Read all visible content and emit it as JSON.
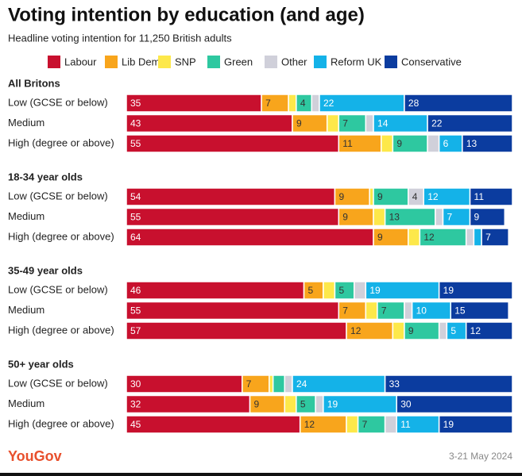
{
  "chart_data": {
    "type": "bar",
    "orientation": "horizontal",
    "stacked": true,
    "title": "Voting intention by education (and age)",
    "subtitle": "Headline voting intention for 11,250 British adults",
    "xlim": [
      0,
      100
    ],
    "series": [
      {
        "name": "Labour",
        "color": "#c8102e"
      },
      {
        "name": "Lib Dem",
        "color": "#f8a51c"
      },
      {
        "name": "SNP",
        "color": "#fde84a"
      },
      {
        "name": "Green",
        "color": "#2ec8a0"
      },
      {
        "name": "Other",
        "color": "#d0d0da"
      },
      {
        "name": "Reform UK",
        "color": "#14b2e8"
      },
      {
        "name": "Conservative",
        "color": "#0b3c9f"
      }
    ],
    "groups": [
      {
        "title": "All Britons",
        "categories": [
          "Low (GCSE or below)",
          "Medium",
          "High (degree or above)"
        ],
        "values": [
          [
            35,
            43,
            55
          ],
          [
            7,
            9,
            11
          ],
          [
            2,
            3,
            3
          ],
          [
            4,
            7,
            9
          ],
          [
            2,
            2,
            3
          ],
          [
            22,
            14,
            6
          ],
          [
            28,
            22,
            13
          ]
        ]
      },
      {
        "title": "18-34 year olds",
        "categories": [
          "Low (GCSE or below)",
          "Medium",
          "High (degree or above)"
        ],
        "values": [
          [
            54,
            55,
            64
          ],
          [
            9,
            9,
            9
          ],
          [
            1,
            3,
            3
          ],
          [
            9,
            13,
            12
          ],
          [
            4,
            2,
            2
          ],
          [
            12,
            7,
            2
          ],
          [
            11,
            9,
            7
          ]
        ]
      },
      {
        "title": "35-49 year olds",
        "categories": [
          "Low (GCSE or below)",
          "Medium",
          "High (degree or above)"
        ],
        "values": [
          [
            46,
            55,
            57
          ],
          [
            5,
            7,
            12
          ],
          [
            3,
            3,
            3
          ],
          [
            5,
            7,
            9
          ],
          [
            3,
            2,
            2
          ],
          [
            19,
            10,
            5
          ],
          [
            19,
            15,
            12
          ]
        ]
      },
      {
        "title": "50+ year olds",
        "categories": [
          "Low (GCSE or below)",
          "Medium",
          "High (degree or above)"
        ],
        "values": [
          [
            30,
            32,
            45
          ],
          [
            7,
            9,
            12
          ],
          [
            1,
            3,
            3
          ],
          [
            3,
            5,
            7
          ],
          [
            2,
            2,
            3
          ],
          [
            24,
            19,
            11
          ],
          [
            33,
            30,
            19
          ]
        ]
      }
    ]
  },
  "footer": {
    "logo": "YouGov",
    "date": "3-21 May 2024"
  }
}
